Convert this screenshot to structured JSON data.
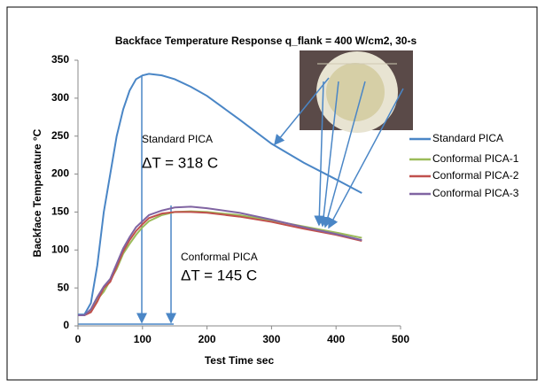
{
  "chart_data": {
    "type": "line",
    "title": "Backface Temperature Response q_flank = 400 W/cm2, 30-s",
    "x_label": "Test Time sec",
    "y_label": "Backface Temperature °C",
    "x": [
      0,
      10,
      20,
      30,
      40,
      50,
      60,
      70,
      80,
      90,
      100,
      110,
      130,
      150,
      175,
      200,
      250,
      300,
      350,
      400,
      440
    ],
    "series": [
      {
        "name": "Standard PICA",
        "color": "#4a86c6",
        "values": [
          15,
          15,
          30,
          80,
          150,
          200,
          250,
          285,
          310,
          325,
          330,
          332,
          330,
          325,
          315,
          303,
          272,
          240,
          215,
          193,
          175
        ]
      },
      {
        "name": "Conformal PICA-1",
        "color": "#9bbb59",
        "values": [
          14,
          14,
          20,
          35,
          45,
          60,
          75,
          95,
          108,
          120,
          130,
          138,
          146,
          150,
          151,
          150,
          146,
          139,
          131,
          123,
          116
        ]
      },
      {
        "name": "Conformal PICA-2",
        "color": "#c0504d",
        "values": [
          14,
          14,
          18,
          32,
          50,
          58,
          78,
          98,
          113,
          125,
          134,
          142,
          148,
          150,
          150,
          149,
          144,
          137,
          128,
          120,
          112
        ]
      },
      {
        "name": "Conformal PICA-3",
        "color": "#8064a2",
        "values": [
          14,
          14,
          22,
          38,
          52,
          62,
          82,
          102,
          117,
          130,
          138,
          146,
          152,
          156,
          157,
          155,
          149,
          140,
          130,
          121,
          113
        ]
      }
    ],
    "xlim": [
      0,
      500
    ],
    "ylim": [
      0,
      350
    ],
    "xticks": [
      0,
      100,
      200,
      300,
      400,
      500
    ],
    "yticks": [
      0,
      50,
      100,
      150,
      200,
      250,
      300,
      350
    ],
    "grid": false,
    "legend": "right",
    "annotations": [
      "Standard PICA",
      "ΔT = 318 C",
      "Conformal PICA",
      "ΔT = 145 C"
    ]
  }
}
